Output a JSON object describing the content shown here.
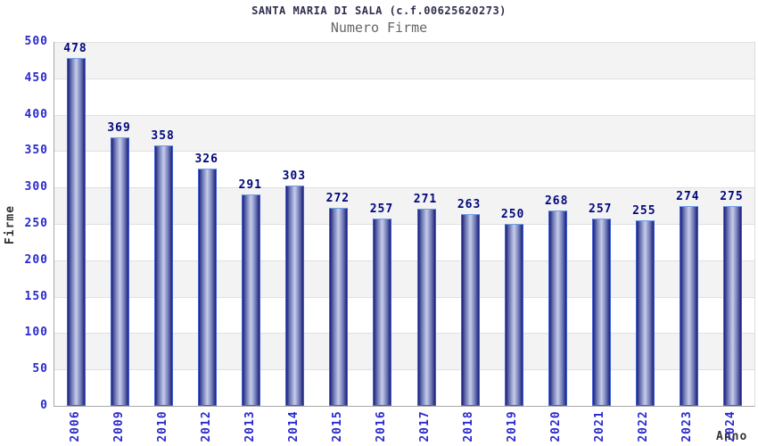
{
  "chart_data": {
    "type": "bar",
    "title": "SANTA MARIA DI SALA (c.f.00625620273)",
    "subtitle": "Numero Firme",
    "xlabel": "Anno",
    "ylabel": "Firme",
    "categories": [
      "2006",
      "2009",
      "2010",
      "2012",
      "2013",
      "2014",
      "2015",
      "2016",
      "2017",
      "2018",
      "2019",
      "2020",
      "2021",
      "2022",
      "2023",
      "2024"
    ],
    "values": [
      478,
      369,
      358,
      326,
      291,
      303,
      272,
      257,
      271,
      263,
      250,
      268,
      257,
      255,
      274,
      275
    ],
    "ylim": [
      0,
      500
    ],
    "ytick_step": 50,
    "grid": "horizontal-bands",
    "legend": "none",
    "colors": {
      "title": "#2e2e4e",
      "subtitle": "#666666",
      "tick_labels": "#2929cc",
      "value_labels": "#00077a",
      "axis_labels": "#333333",
      "band_gray": "#f3f3f3",
      "band_white": "#ffffff",
      "gridline": "#e0e0e0",
      "axis_line": "#a9a9a9",
      "bar_border": "#3f62d6",
      "bar_border_top": "#6f9de8",
      "bar_dark": "#1d2078",
      "bar_mid": "#6d77b4",
      "bar_light": "#c6cdea"
    }
  }
}
